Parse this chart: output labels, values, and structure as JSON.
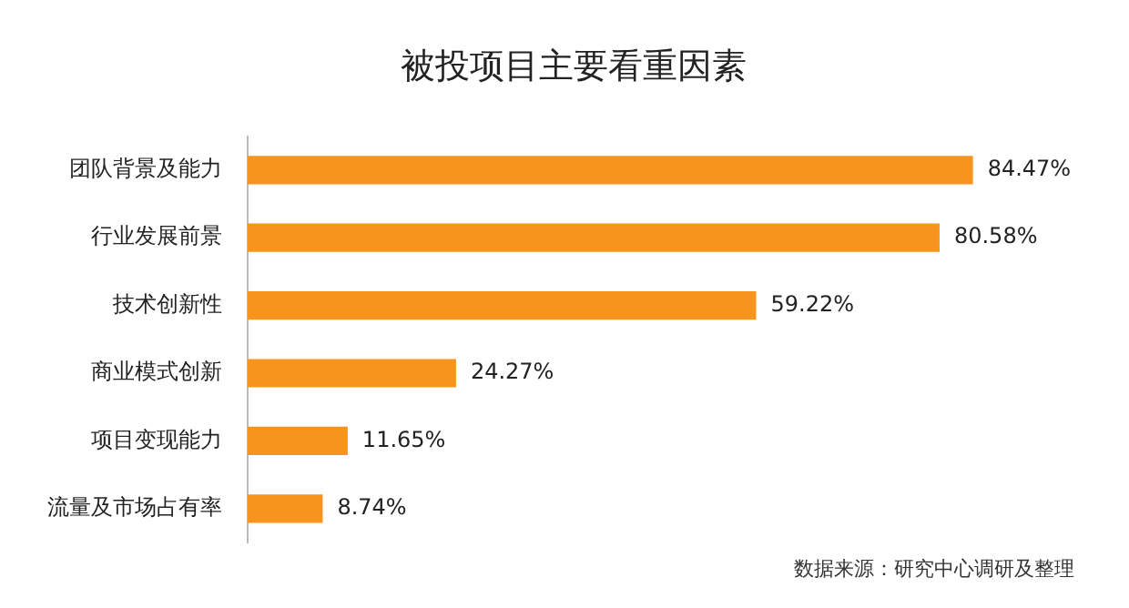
{
  "chart_data": {
    "type": "bar",
    "orientation": "horizontal",
    "title": "被投项目主要看重因素",
    "categories": [
      "团队背景及能力",
      "行业发展前景",
      "技术创新性",
      "商业模式创新",
      "项目变现能力",
      "流量及市场占有率"
    ],
    "values": [
      84.47,
      80.58,
      59.22,
      24.27,
      11.65,
      8.74
    ],
    "value_labels": [
      "84.47%",
      "80.58%",
      "59.22%",
      "24.27%",
      "11.65%",
      "8.74%"
    ],
    "color": "#f7941d",
    "annotations": [
      "数据来源：研究中心调研及整理"
    ]
  }
}
